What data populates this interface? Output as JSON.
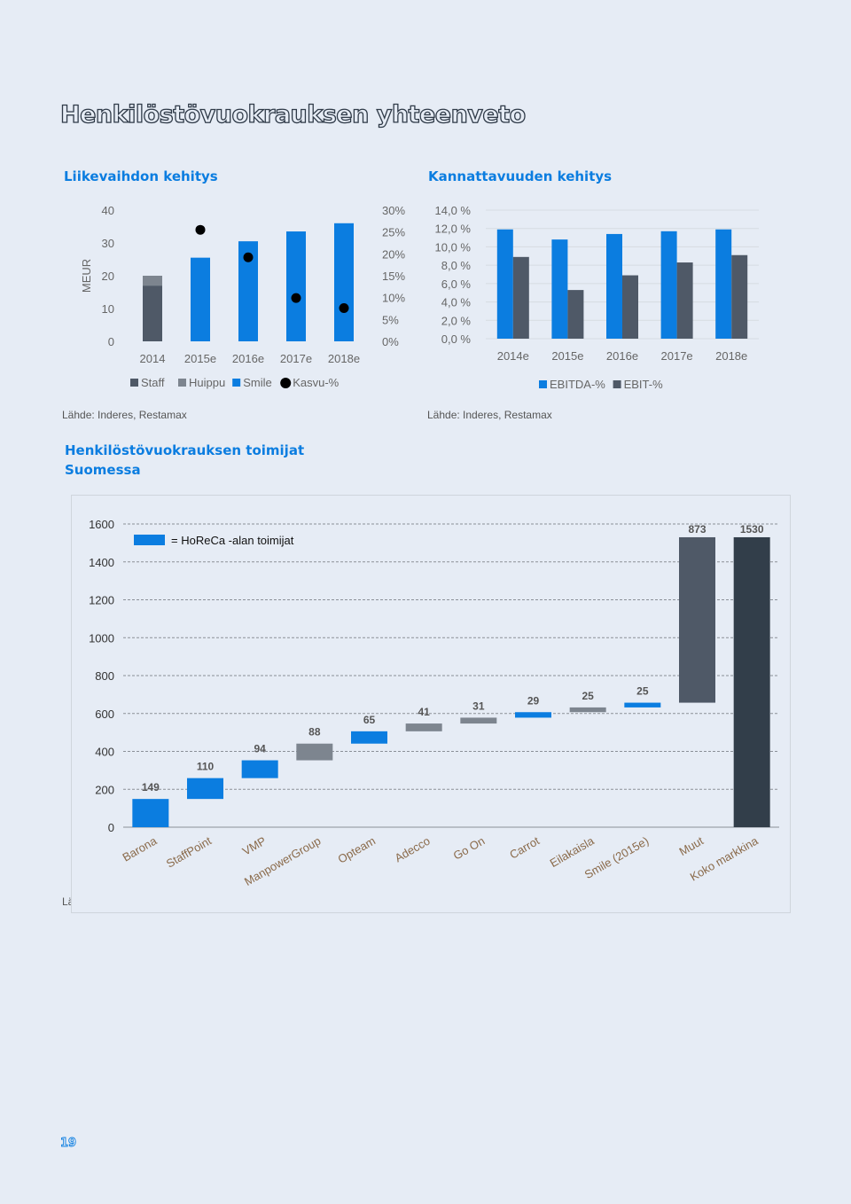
{
  "page": {
    "title": "Henkilöstövuokrauksen yhteenveto",
    "page_number": "19"
  },
  "revenue_section": {
    "title": "Liikevaihdon kehitys",
    "source": "Lähde: Inderes, Restamax"
  },
  "profit_section": {
    "title": "Kannattavuuden kehitys",
    "source": "Lähde: Inderes, Restamax"
  },
  "players_section": {
    "title_line1": "Henkilöstövuokrauksen toimijat",
    "title_line2": "Suomessa",
    "source_fragment": "Lä"
  },
  "colors": {
    "blue": "#0b7de0",
    "dark_gray": "#4f5967",
    "gray": "#7d858f",
    "charcoal": "#323e4a",
    "title_blue": "#0b7de0"
  },
  "chart_data": [
    {
      "id": "revenue",
      "type": "bar",
      "categories": [
        "2014",
        "2015e",
        "2016e",
        "2017e",
        "2018e"
      ],
      "series": [
        {
          "name": "Staff",
          "kind": "stacked-bar",
          "color": "#4f5967",
          "values": [
            17,
            0,
            0,
            0,
            0
          ]
        },
        {
          "name": "Huippu",
          "kind": "stacked-bar",
          "color": "#7d858f",
          "values": [
            3,
            0,
            0,
            0,
            0
          ]
        },
        {
          "name": "Smile",
          "kind": "stacked-bar",
          "color": "#0b7de0",
          "values": [
            0,
            25.5,
            30.5,
            33.5,
            36
          ]
        },
        {
          "name": "Kasvu-%",
          "kind": "dots-secondary-axis",
          "color": "#000000",
          "values": [
            null,
            25.5,
            19.2,
            9.9,
            7.6
          ]
        }
      ],
      "ylabel": "MEUR",
      "ylim": [
        0,
        40
      ],
      "yticks": [
        "0",
        "10",
        "20",
        "30",
        "40"
      ],
      "y2lim": [
        0,
        30
      ],
      "y2ticks": [
        "0%",
        "5%",
        "10%",
        "15%",
        "20%",
        "25%",
        "30%"
      ],
      "legend": [
        "Staff",
        "Huippu",
        "Smile",
        "Kasvu-%"
      ],
      "legend_position": "bottom",
      "grid": false
    },
    {
      "id": "profitability",
      "type": "bar",
      "categories": [
        "2014e",
        "2015e",
        "2016e",
        "2017e",
        "2018e"
      ],
      "series": [
        {
          "name": "EBITDA-%",
          "color": "#0b7de0",
          "values": [
            11.9,
            10.8,
            11.4,
            11.7,
            11.9
          ]
        },
        {
          "name": "EBIT-%",
          "color": "#4f5967",
          "values": [
            8.9,
            5.3,
            6.9,
            8.3,
            9.1
          ]
        }
      ],
      "ylim": [
        0,
        14
      ],
      "yticks": [
        "0,0 %",
        "2,0 %",
        "4,0 %",
        "6,0 %",
        "8,0 %",
        "10,0 %",
        "12,0 %",
        "14,0 %"
      ],
      "legend": [
        "EBITDA-%",
        "EBIT-%"
      ],
      "legend_position": "bottom",
      "grid": true
    },
    {
      "id": "players",
      "type": "bar",
      "subtype": "waterfall",
      "categories": [
        "Barona",
        "StaffPoint",
        "VMP",
        "ManpowerGroup",
        "Opteam",
        "Adecco",
        "Go On",
        "Carrot",
        "Eilakaisla",
        "Smile (2015e)",
        "Muut",
        "Koko markkina"
      ],
      "values": [
        149,
        110,
        94,
        88,
        65,
        41,
        31,
        29,
        25,
        25,
        873,
        1530
      ],
      "value_labels": [
        "149",
        "110",
        "94",
        "88",
        "65",
        "41",
        "31",
        "29",
        "25",
        "25",
        "873",
        "1530"
      ],
      "horeca": [
        true,
        true,
        true,
        false,
        true,
        false,
        false,
        true,
        false,
        true,
        false,
        false
      ],
      "total_index": 11,
      "colors": {
        "horeca": "#0b7de0",
        "other": "#7d858f",
        "rest": "#4f5967",
        "total": "#323e4a"
      },
      "legend_label": "= HoReCa -alan toimijat",
      "ylim": [
        0,
        1600
      ],
      "yticks": [
        "0",
        "200",
        "400",
        "600",
        "800",
        "1000",
        "1200",
        "1400",
        "1600"
      ],
      "grid": true
    }
  ]
}
